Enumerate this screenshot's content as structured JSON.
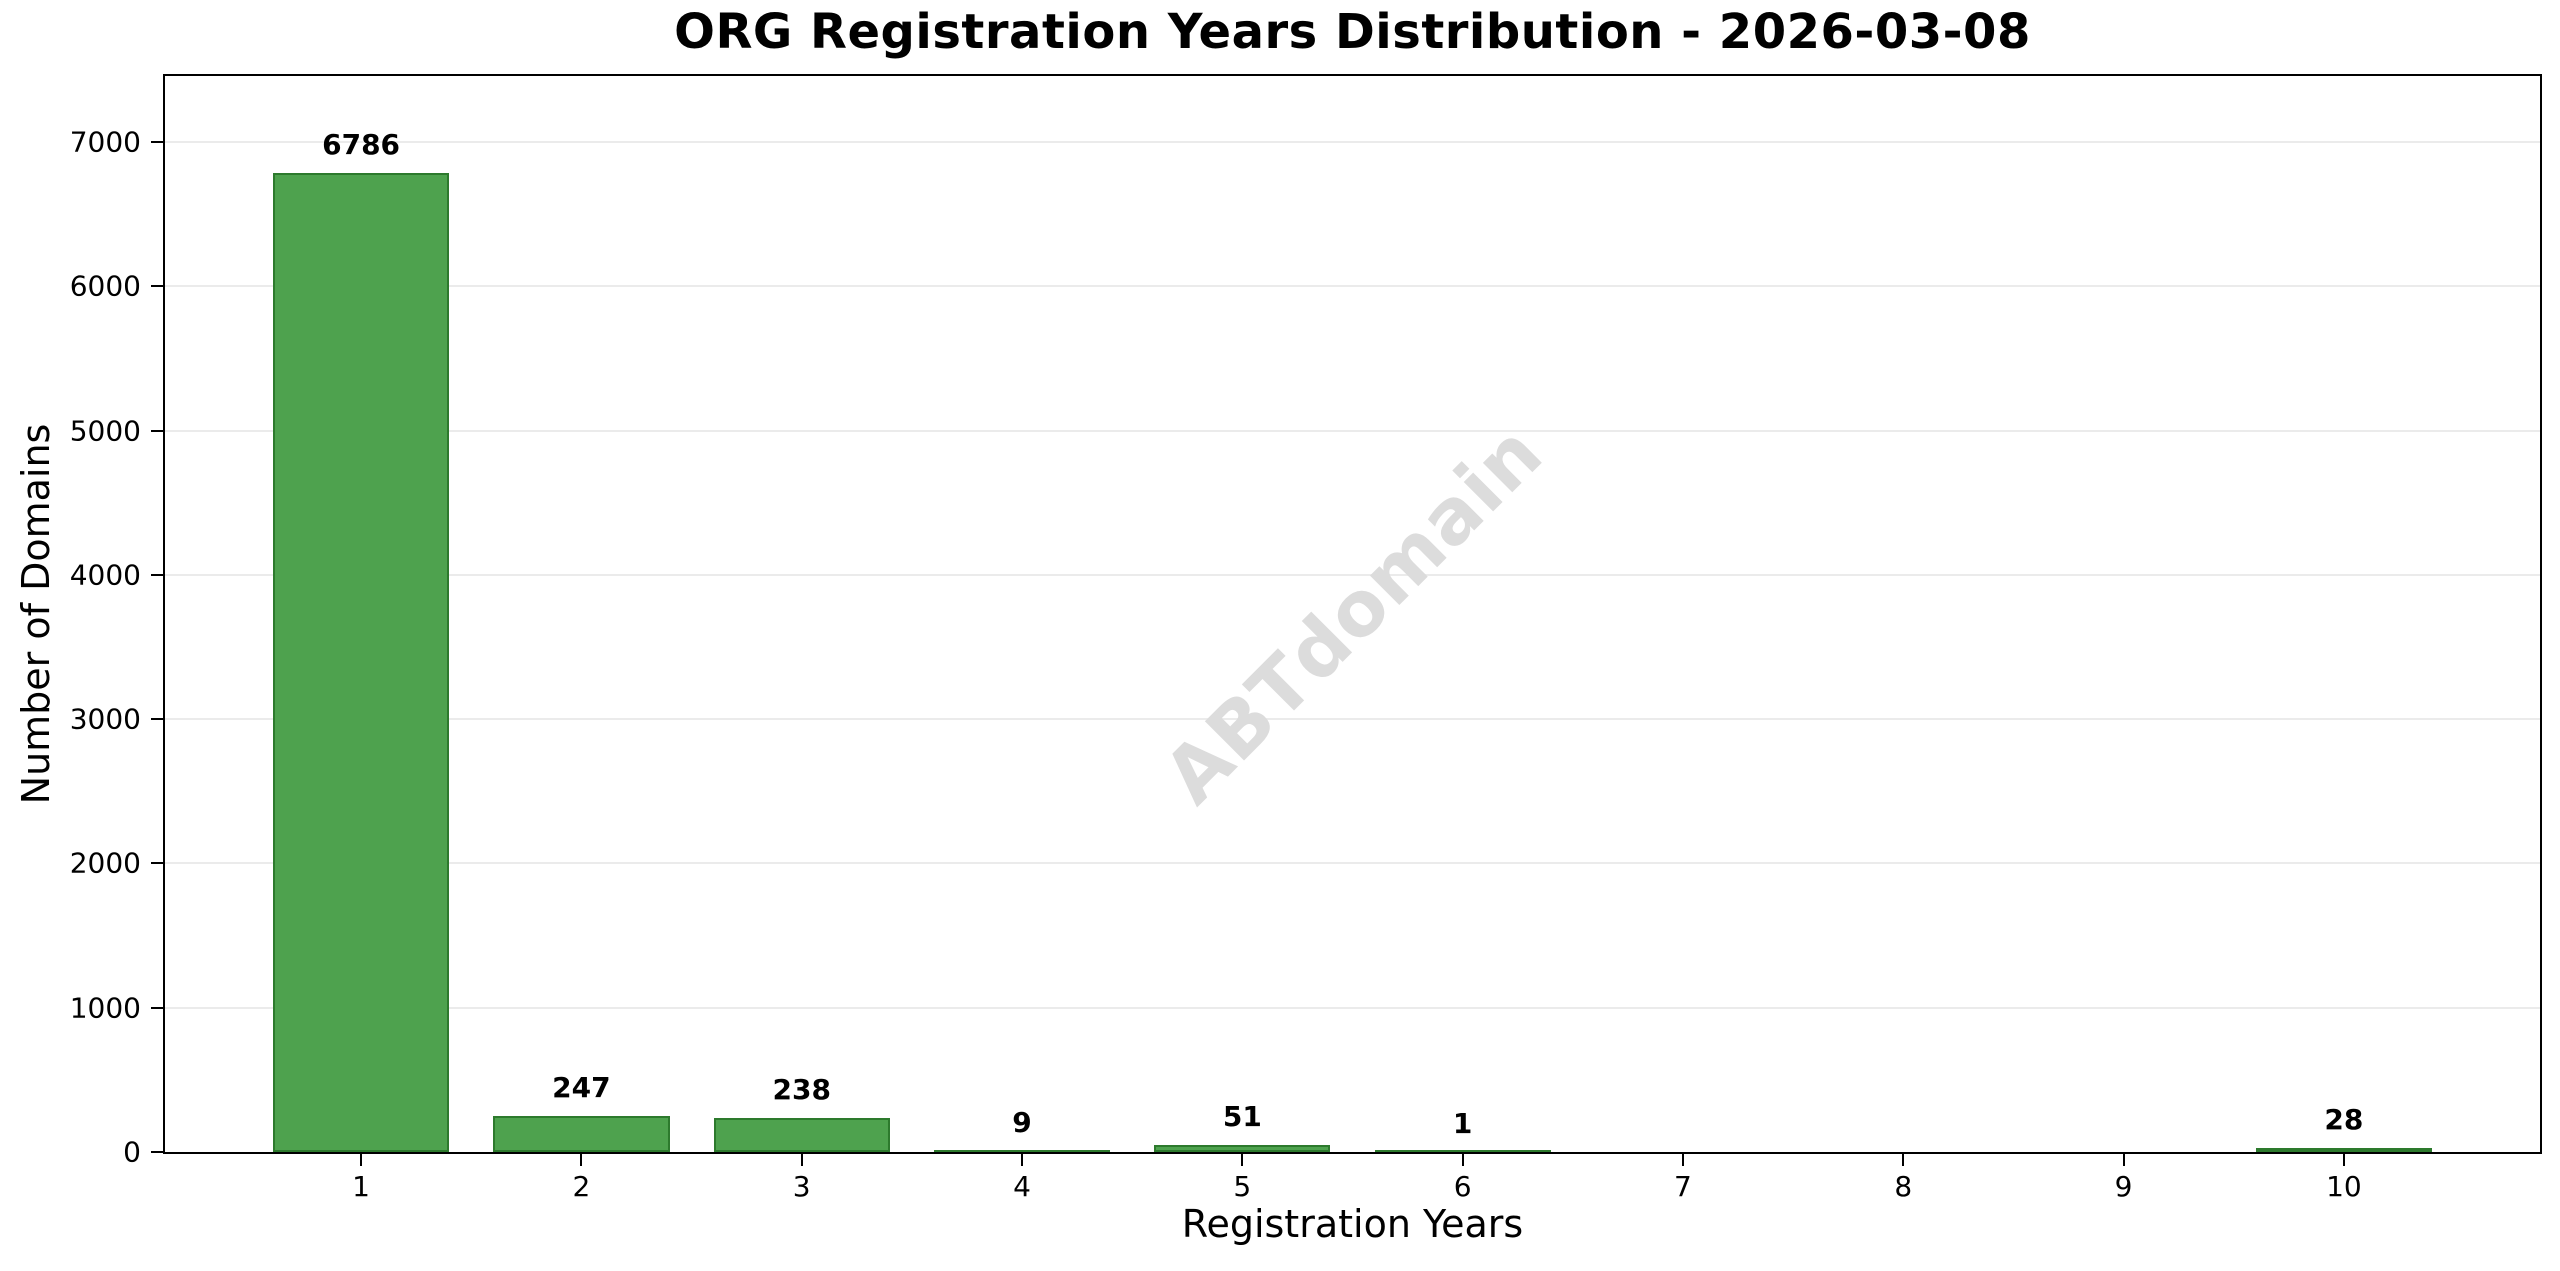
{
  "colors": {
    "background": "#ffffff",
    "bar_fill": "#4ea24e",
    "bar_edge": "#2d7a2d",
    "grid": "#ebebeb",
    "axis": "#000000",
    "text": "#000000",
    "watermark": "#dcdcdc"
  },
  "chart_data": {
    "type": "bar",
    "title": "ORG Registration Years Distribution - 2026-03-08",
    "xlabel": "Registration Years",
    "ylabel": "Number of Domains",
    "categories": [
      "1",
      "2",
      "3",
      "4",
      "5",
      "6",
      "7",
      "8",
      "9",
      "10"
    ],
    "values": [
      6786,
      247,
      238,
      9,
      51,
      1,
      0,
      0,
      0,
      28
    ],
    "bar_labels": [
      "6786",
      "247",
      "238",
      "9",
      "51",
      "1",
      "",
      "",
      "",
      "28"
    ],
    "yticks": [
      0,
      1000,
      2000,
      3000,
      4000,
      5000,
      6000,
      7000
    ],
    "ylim": [
      0,
      7457
    ],
    "xlim": [
      0.11,
      10.89
    ],
    "bar_width_units": 0.8,
    "grid": "horizontal-only",
    "legend": "none",
    "watermark": "ABTdomain"
  }
}
